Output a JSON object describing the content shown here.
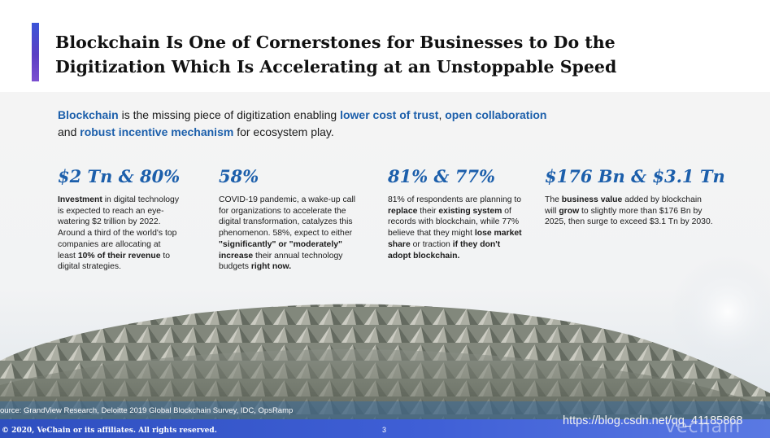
{
  "title": {
    "line1": "Blockchain Is One of Cornerstones for Businesses to Do the",
    "line2": "Digitization Which Is Accelerating at an Unstoppable Speed"
  },
  "intro": {
    "t1": "Blockchain",
    "t2": " is the missing piece of digitization enabling ",
    "t3": "lower cost of trust",
    "t4": ", ",
    "t5": "open collaboration",
    "t6": " and ",
    "t7": "robust incentive mechanism",
    "t8": " for ecosystem play."
  },
  "stats": [
    {
      "head": "$2 Tn & 80%",
      "b1": "Investment",
      "t1": " in digital technology is expected to reach an eye-watering $2 trillion by 2022.  Around a third of the world's top companies are allocating at least ",
      "b2": "10% of their revenue",
      "t2": " to digital strategies."
    },
    {
      "head": "58%",
      "t1": "COVID-19 pandemic, a wake-up call for organizations to accelerate the digital transformation, catalyzes this phenomenon. 58%, expect to either ",
      "b1": "\"significantly\" or \"moderately\" increase",
      "t2": " their annual technology budgets ",
      "b2": "right now."
    },
    {
      "head": "81% & 77%",
      "t1": "81% of respondents are planning to ",
      "b1": "replace",
      "t2": " their ",
      "b2": "existing system",
      "t3": " of records with blockchain, while 77% believe that they might ",
      "b3": "lose market share",
      "t4": " or traction ",
      "b4": "if they don't adopt blockchain."
    },
    {
      "head": "$176 Bn & $3.1 Tn",
      "t1": "The ",
      "b1": "business value",
      "t2": " added by blockchain will ",
      "b2": "grow",
      "t3": " to slightly more than $176 Bn by 2025, then surge to exceed $3.1 Tn by 2030."
    }
  ],
  "source": "ource: GrandView Research, Deloitte 2019 Global Blockchain Survey, IDC, OpsRamp",
  "footer": {
    "copyright": "© 2020, VeChain or its affiliates. All rights reserved.",
    "page": "3",
    "watermark": "https://blog.csdn.net/qq_41185868",
    "logo": "vechain"
  },
  "colors": {
    "accent": "#1c5fab",
    "footer": "#3a58cf"
  }
}
